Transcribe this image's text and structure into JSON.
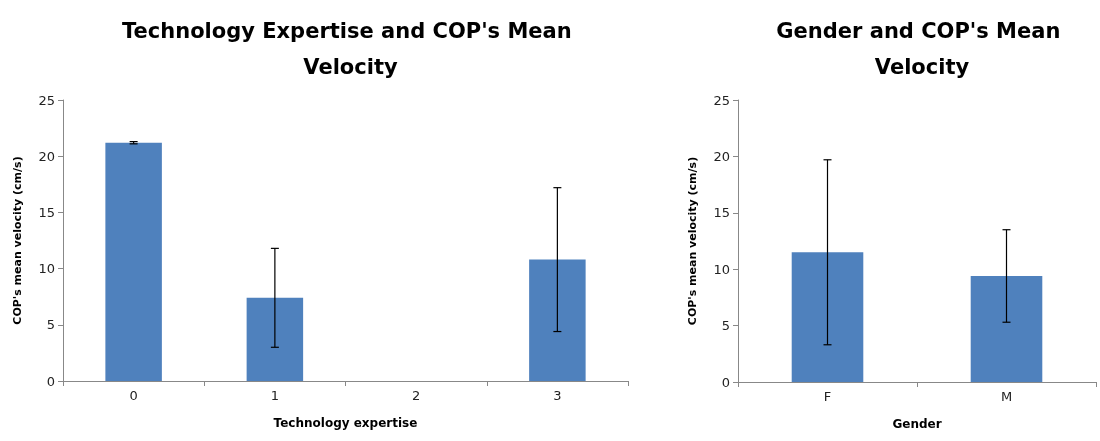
{
  "chart_data": [
    {
      "type": "bar",
      "title": "Technology Expertise and COP's Mean Velocity",
      "xlabel": "Technology expertise",
      "ylabel": "COP's mean velocity (cm/s)",
      "categories": [
        "0",
        "1",
        "2",
        "3"
      ],
      "series": [
        {
          "color": "#4f81bd",
          "values": [
            21.2,
            7.4,
            null,
            10.8
          ],
          "errors": [
            0.1,
            4.4,
            null,
            6.4
          ]
        }
      ],
      "ylim": [
        0,
        25
      ],
      "yticks": [
        0,
        5,
        10,
        15,
        20,
        25
      ],
      "grid": false
    },
    {
      "type": "bar",
      "title": "Gender and COP's Mean Velocity",
      "xlabel": "Gender",
      "ylabel": "COP's mean velocity (cm/s)",
      "categories": [
        "F",
        "M"
      ],
      "series": [
        {
          "color": "#4f81bd",
          "values": [
            11.5,
            9.4
          ],
          "errors": [
            8.2,
            4.1
          ]
        }
      ],
      "ylim": [
        0,
        25
      ],
      "yticks": [
        0,
        5,
        10,
        15,
        20,
        25
      ],
      "grid": false
    }
  ]
}
